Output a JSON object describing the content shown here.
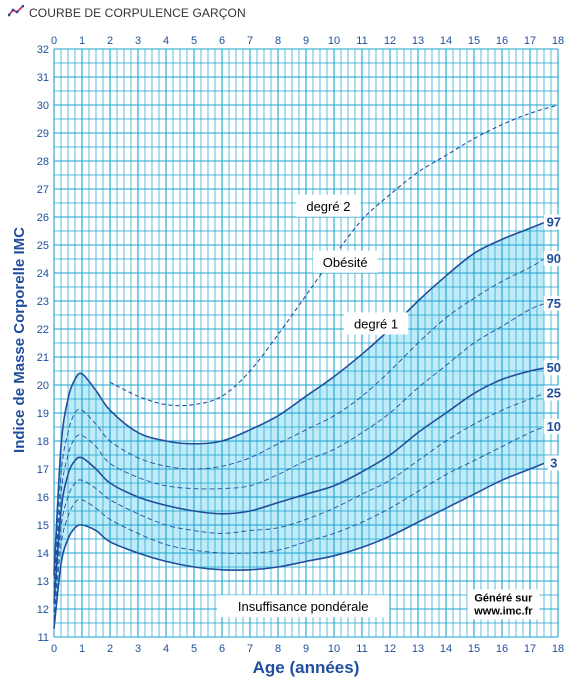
{
  "header": {
    "icon": "chart-line-icon",
    "title": "COURBE DE CORPULENCE GARÇON"
  },
  "colors": {
    "grid": "#1ba3cf",
    "band": "#bfeaf8",
    "curve": "#1f4f9c",
    "text": "#1f4f9c"
  },
  "chart_data": {
    "type": "line",
    "title": "COURBE DE CORPULENCE GARÇON",
    "xlabel": "Age (années)",
    "ylabel": "Indice de Masse Corporelle  IMC",
    "xlim": [
      0,
      18
    ],
    "ylim": [
      11,
      32
    ],
    "x_ticks": [
      0,
      1,
      2,
      3,
      4,
      5,
      6,
      7,
      8,
      9,
      10,
      11,
      12,
      13,
      14,
      15,
      16,
      17,
      18
    ],
    "y_ticks": [
      11,
      12,
      13,
      14,
      15,
      16,
      17,
      18,
      19,
      20,
      21,
      22,
      23,
      24,
      25,
      26,
      27,
      28,
      29,
      30,
      31,
      32
    ],
    "grid": true,
    "band": {
      "lower": "3",
      "upper": "97"
    },
    "series": [
      {
        "name": "3",
        "style": "solid",
        "x": [
          0,
          0.25,
          0.5,
          0.75,
          1,
          1.5,
          2,
          3,
          4,
          5,
          6,
          7,
          8,
          9,
          10,
          11,
          12,
          13,
          14,
          15,
          16,
          17,
          17.5
        ],
        "y": [
          11.3,
          13.6,
          14.5,
          14.9,
          15.0,
          14.8,
          14.4,
          14.0,
          13.7,
          13.5,
          13.4,
          13.4,
          13.5,
          13.7,
          13.9,
          14.2,
          14.6,
          15.1,
          15.6,
          16.1,
          16.6,
          17.0,
          17.2
        ]
      },
      {
        "name": "10",
        "style": "dashed",
        "x": [
          0,
          0.25,
          0.5,
          0.75,
          1,
          1.5,
          2,
          3,
          4,
          5,
          6,
          7,
          8,
          9,
          10,
          11,
          12,
          13,
          14,
          15,
          16,
          17,
          17.5
        ],
        "y": [
          11.6,
          14.3,
          15.3,
          15.8,
          15.9,
          15.6,
          15.2,
          14.7,
          14.3,
          14.1,
          14.0,
          14.0,
          14.1,
          14.4,
          14.7,
          15.1,
          15.6,
          16.2,
          16.8,
          17.3,
          17.8,
          18.3,
          18.5
        ]
      },
      {
        "name": "25",
        "style": "dashed",
        "x": [
          0,
          0.25,
          0.5,
          0.75,
          1,
          1.5,
          2,
          3,
          4,
          5,
          6,
          7,
          8,
          9,
          10,
          11,
          12,
          13,
          14,
          15,
          16,
          17,
          17.5
        ],
        "y": [
          11.9,
          14.9,
          16.0,
          16.5,
          16.6,
          16.3,
          15.9,
          15.4,
          15.0,
          14.8,
          14.7,
          14.8,
          14.9,
          15.2,
          15.6,
          16.1,
          16.6,
          17.3,
          18.0,
          18.6,
          19.1,
          19.5,
          19.7
        ]
      },
      {
        "name": "50",
        "style": "solid",
        "x": [
          0,
          0.25,
          0.5,
          0.75,
          1,
          1.5,
          2,
          3,
          4,
          5,
          6,
          7,
          8,
          9,
          10,
          11,
          12,
          13,
          14,
          15,
          16,
          17,
          17.5
        ],
        "y": [
          12.2,
          15.5,
          16.8,
          17.3,
          17.4,
          17.0,
          16.5,
          16.0,
          15.7,
          15.5,
          15.4,
          15.5,
          15.8,
          16.1,
          16.4,
          16.9,
          17.5,
          18.3,
          19.0,
          19.7,
          20.2,
          20.5,
          20.6
        ]
      },
      {
        "name": "75",
        "style": "dashed",
        "x": [
          0,
          0.25,
          0.5,
          0.75,
          1,
          1.5,
          2,
          3,
          4,
          5,
          6,
          7,
          8,
          9,
          10,
          11,
          12,
          13,
          14,
          15,
          16,
          17,
          17.5
        ],
        "y": [
          12.5,
          16.1,
          17.5,
          18.1,
          18.2,
          17.8,
          17.2,
          16.7,
          16.4,
          16.3,
          16.3,
          16.4,
          16.8,
          17.3,
          17.7,
          18.3,
          19.0,
          19.9,
          20.7,
          21.5,
          22.1,
          22.7,
          22.9
        ]
      },
      {
        "name": "90",
        "style": "dashed",
        "x": [
          0,
          0.25,
          0.5,
          0.75,
          1,
          1.5,
          2,
          3,
          4,
          5,
          6,
          7,
          8,
          9,
          10,
          11,
          12,
          13,
          14,
          15,
          16,
          17,
          17.5
        ],
        "y": [
          12.8,
          16.8,
          18.3,
          19.0,
          19.1,
          18.6,
          18.0,
          17.4,
          17.1,
          17.0,
          17.1,
          17.4,
          17.9,
          18.4,
          18.9,
          19.6,
          20.5,
          21.5,
          22.4,
          23.1,
          23.7,
          24.2,
          24.5
        ]
      },
      {
        "name": "97",
        "style": "solid",
        "x": [
          0,
          0.25,
          0.5,
          0.75,
          1,
          1.5,
          2,
          3,
          4,
          5,
          6,
          7,
          8,
          9,
          10,
          11,
          12,
          13,
          14,
          15,
          16,
          17,
          17.5
        ],
        "y": [
          13.2,
          17.8,
          19.5,
          20.2,
          20.4,
          19.8,
          19.1,
          18.3,
          18.0,
          17.9,
          18.0,
          18.4,
          18.9,
          19.6,
          20.3,
          21.1,
          22.0,
          23.0,
          23.9,
          24.7,
          25.2,
          25.6,
          25.8
        ]
      },
      {
        "name": "",
        "style": "dotted",
        "x": [
          2,
          3,
          4,
          5,
          6,
          7,
          8,
          9,
          10,
          11,
          12,
          13,
          14,
          15,
          16,
          17,
          18
        ],
        "y": [
          20.1,
          19.6,
          19.3,
          19.3,
          19.6,
          20.5,
          21.8,
          23.2,
          24.6,
          25.9,
          26.8,
          27.6,
          28.2,
          28.8,
          29.3,
          29.7,
          30.0
        ]
      }
    ],
    "annotations": [
      {
        "text": "degré 2"
      },
      {
        "text": "Obésité"
      },
      {
        "text": "degré 1"
      },
      {
        "text": "Insuffisance pondérale"
      }
    ],
    "credit": [
      "Généré sur",
      "www.imc.fr"
    ]
  }
}
